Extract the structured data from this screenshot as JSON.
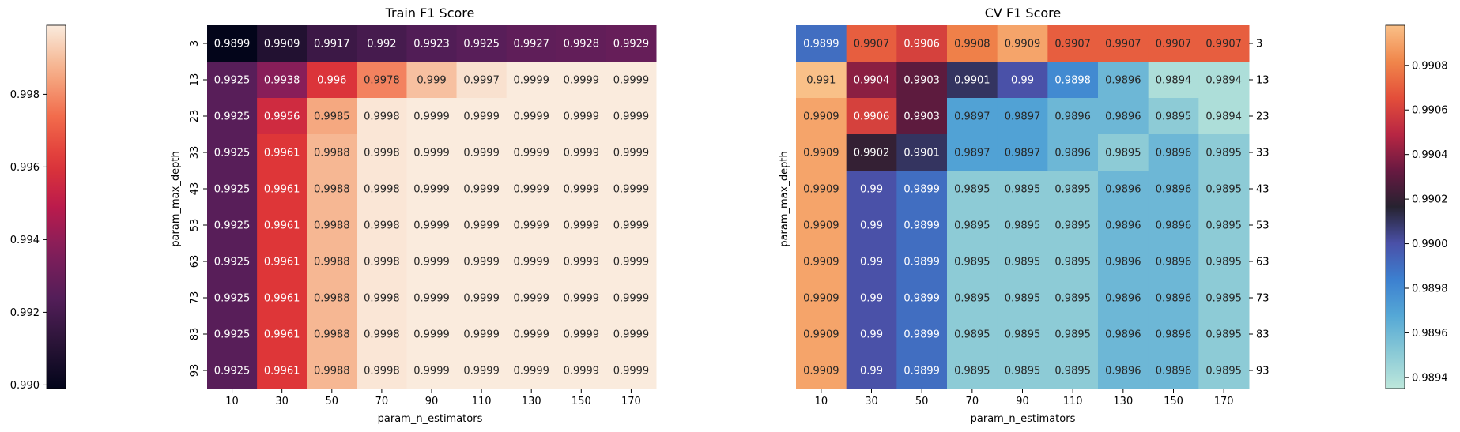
{
  "chart_data": [
    {
      "type": "heatmap",
      "title": "Train F1 Score",
      "xlabel": "param_n_estimators",
      "ylabel": "param_max_depth",
      "x_categories": [
        "10",
        "30",
        "50",
        "70",
        "90",
        "110",
        "130",
        "150",
        "170"
      ],
      "y_categories": [
        "3",
        "13",
        "23",
        "33",
        "43",
        "53",
        "63",
        "73",
        "83",
        "93"
      ],
      "values": [
        [
          0.9899,
          0.9909,
          0.9917,
          0.992,
          0.9923,
          0.9925,
          0.9927,
          0.9928,
          0.9929
        ],
        [
          0.9925,
          0.9938,
          0.996,
          0.9978,
          0.999,
          0.9997,
          0.9999,
          0.9999,
          0.9999
        ],
        [
          0.9925,
          0.9956,
          0.9985,
          0.9998,
          0.9999,
          0.9999,
          0.9999,
          0.9999,
          0.9999
        ],
        [
          0.9925,
          0.9961,
          0.9988,
          0.9998,
          0.9999,
          0.9999,
          0.9999,
          0.9999,
          0.9999
        ],
        [
          0.9925,
          0.9961,
          0.9988,
          0.9998,
          0.9999,
          0.9999,
          0.9999,
          0.9999,
          0.9999
        ],
        [
          0.9925,
          0.9961,
          0.9988,
          0.9998,
          0.9999,
          0.9999,
          0.9999,
          0.9999,
          0.9999
        ],
        [
          0.9925,
          0.9961,
          0.9988,
          0.9998,
          0.9999,
          0.9999,
          0.9999,
          0.9999,
          0.9999
        ],
        [
          0.9925,
          0.9961,
          0.9988,
          0.9998,
          0.9999,
          0.9999,
          0.9999,
          0.9999,
          0.9999
        ],
        [
          0.9925,
          0.9961,
          0.9988,
          0.9998,
          0.9999,
          0.9999,
          0.9999,
          0.9999,
          0.9999
        ],
        [
          0.9925,
          0.9961,
          0.9988,
          0.9998,
          0.9999,
          0.9999,
          0.9999,
          0.9999,
          0.9999
        ]
      ],
      "colormap": "rocket",
      "colorbar": {
        "placement": "left",
        "range": [
          0.9899,
          0.9999
        ],
        "ticks": [
          0.99,
          0.992,
          0.994,
          0.996,
          0.998
        ],
        "tick_labels": [
          "0.990",
          "0.992",
          "0.994",
          "0.996",
          "0.998"
        ]
      }
    },
    {
      "type": "heatmap",
      "title": "CV F1 Score",
      "xlabel": "param_n_estimators",
      "ylabel": "param_max_depth",
      "y_tick_side": "right",
      "x_categories": [
        "10",
        "30",
        "50",
        "70",
        "90",
        "110",
        "130",
        "150",
        "170"
      ],
      "y_categories": [
        "3",
        "13",
        "23",
        "33",
        "43",
        "53",
        "63",
        "73",
        "83",
        "93"
      ],
      "values": [
        [
          0.9899,
          0.9907,
          0.9906,
          0.9908,
          0.9909,
          0.9907,
          0.9907,
          0.9907,
          0.9907
        ],
        [
          0.991,
          0.9904,
          0.9903,
          0.9901,
          0.99,
          0.9898,
          0.9896,
          0.9894,
          0.9894
        ],
        [
          0.9909,
          0.9906,
          0.9903,
          0.9897,
          0.9897,
          0.9896,
          0.9896,
          0.9895,
          0.9894
        ],
        [
          0.9909,
          0.9902,
          0.9901,
          0.9897,
          0.9897,
          0.9896,
          0.9895,
          0.9896,
          0.9895
        ],
        [
          0.9909,
          0.99,
          0.9899,
          0.9895,
          0.9895,
          0.9895,
          0.9896,
          0.9896,
          0.9895
        ],
        [
          0.9909,
          0.99,
          0.9899,
          0.9895,
          0.9895,
          0.9895,
          0.9896,
          0.9896,
          0.9895
        ],
        [
          0.9909,
          0.99,
          0.9899,
          0.9895,
          0.9895,
          0.9895,
          0.9896,
          0.9896,
          0.9895
        ],
        [
          0.9909,
          0.99,
          0.9899,
          0.9895,
          0.9895,
          0.9895,
          0.9896,
          0.9896,
          0.9895
        ],
        [
          0.9909,
          0.99,
          0.9899,
          0.9895,
          0.9895,
          0.9895,
          0.9896,
          0.9896,
          0.9895
        ],
        [
          0.9909,
          0.99,
          0.9899,
          0.9895,
          0.9895,
          0.9895,
          0.9896,
          0.9896,
          0.9895
        ]
      ],
      "colormap": "icefire",
      "colorbar": {
        "placement": "right",
        "range": [
          0.98935,
          0.99098
        ],
        "ticks": [
          0.9894,
          0.9896,
          0.9898,
          0.99,
          0.9902,
          0.9904,
          0.9906,
          0.9908
        ],
        "tick_labels": [
          "0.9894",
          "0.9896",
          "0.9898",
          "0.9900",
          "0.9902",
          "0.9904",
          "0.9906",
          "0.9908"
        ]
      }
    }
  ]
}
